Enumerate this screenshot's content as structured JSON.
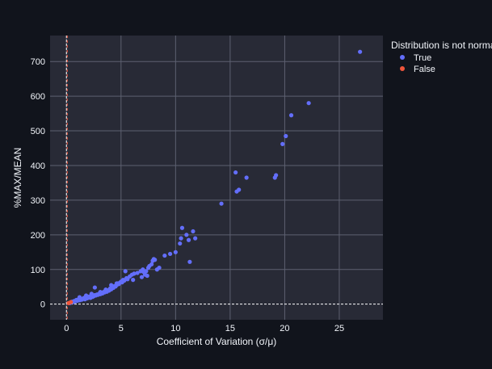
{
  "colors": {
    "background": "#11141c",
    "plot_background": "#282a36",
    "grid": "#5d6070",
    "true_series": "#636efa",
    "false_series": "#ef553b",
    "text": "#f2f5fa"
  },
  "chart_data": {
    "type": "scatter",
    "title": "",
    "xlabel": "Coefficient of Variation (σ/μ)",
    "ylabel": "%MAX/MEAN",
    "xlim": [
      -1.5,
      29
    ],
    "ylim": [
      -45,
      775
    ],
    "x_ticks": [
      0,
      5,
      10,
      15,
      20,
      25
    ],
    "y_ticks": [
      0,
      100,
      200,
      300,
      400,
      500,
      600,
      700
    ],
    "grid": true,
    "legend": {
      "title": "Distribution is not normal",
      "placement": "top-right"
    },
    "reference_lines": {
      "vertical_x": 0,
      "horizontal_y": 0
    },
    "series": [
      {
        "name": "True",
        "color": "#636efa",
        "x": [
          0.3,
          0.4,
          0.5,
          0.6,
          0.7,
          0.8,
          0.9,
          1.0,
          1.1,
          1.2,
          1.3,
          1.4,
          1.5,
          1.6,
          1.7,
          1.8,
          1.9,
          2.0,
          2.1,
          2.2,
          2.3,
          2.4,
          2.5,
          2.6,
          2.7,
          2.8,
          2.9,
          3.0,
          3.1,
          3.2,
          3.3,
          3.4,
          3.5,
          3.6,
          3.7,
          3.8,
          3.9,
          4.0,
          4.1,
          4.2,
          4.3,
          4.4,
          4.5,
          4.6,
          4.7,
          4.8,
          4.9,
          5.0,
          5.1,
          5.2,
          5.3,
          5.5,
          5.6,
          5.8,
          6.0,
          6.2,
          6.5,
          6.8,
          7.0,
          7.1,
          7.2,
          7.3,
          7.5,
          7.6,
          7.8,
          7.9,
          8.0,
          8.1,
          8.5,
          9.0,
          9.5,
          10.0,
          10.4,
          10.5,
          10.6,
          11.0,
          11.2,
          11.3,
          11.6,
          11.8,
          14.2,
          15.5,
          15.6,
          15.8,
          16.5,
          19.1,
          19.2,
          19.8,
          20.1,
          20.6,
          22.2,
          26.9,
          1.2,
          1.8,
          2.3,
          2.6,
          3.1,
          3.6,
          4.1,
          4.6,
          5.4,
          6.1,
          6.9,
          7.4,
          8.3
        ],
        "y": [
          3,
          5,
          7,
          6,
          9,
          8,
          12,
          10,
          14,
          11,
          16,
          13,
          15,
          18,
          14,
          20,
          17,
          19,
          22,
          18,
          24,
          21,
          23,
          26,
          25,
          28,
          27,
          30,
          29,
          33,
          31,
          35,
          34,
          38,
          36,
          40,
          39,
          45,
          43,
          48,
          47,
          52,
          51,
          55,
          60,
          58,
          62,
          65,
          63,
          70,
          68,
          75,
          72,
          80,
          85,
          88,
          90,
          95,
          100,
          92,
          85,
          95,
          105,
          110,
          115,
          125,
          130,
          128,
          105,
          140,
          145,
          150,
          175,
          190,
          220,
          200,
          185,
          122,
          210,
          190,
          290,
          380,
          325,
          330,
          365,
          365,
          372,
          462,
          485,
          545,
          580,
          728,
          20,
          25,
          30,
          48,
          35,
          42,
          55,
          60,
          95,
          70,
          78,
          82,
          100
        ]
      },
      {
        "name": "False",
        "color": "#ef553b",
        "x": [
          0.2,
          0.4
        ],
        "y": [
          3,
          6
        ]
      }
    ]
  }
}
